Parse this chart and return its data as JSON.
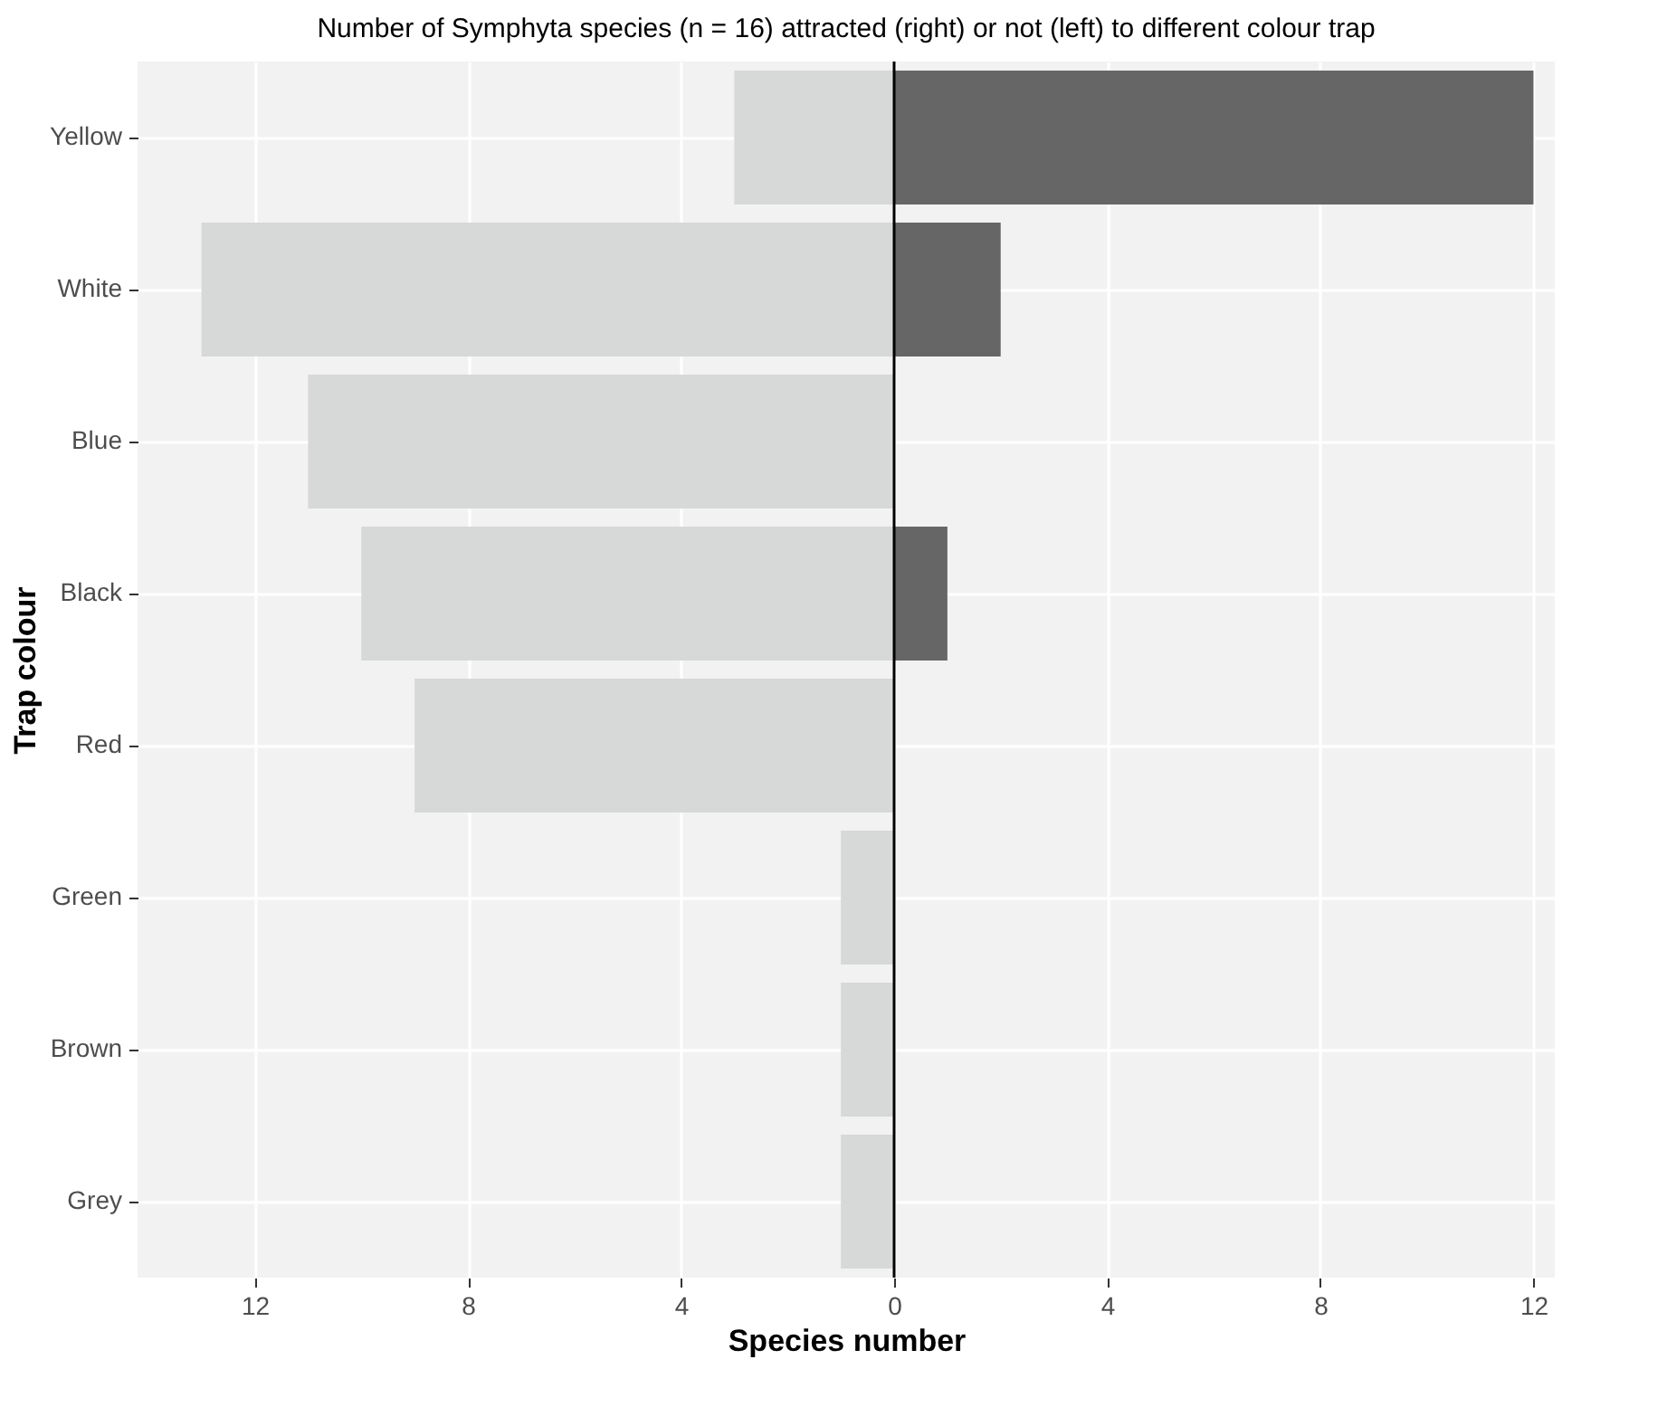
{
  "chart_data": {
    "type": "bar",
    "orientation": "horizontal",
    "title": "Number of Symphyta species (n = 16) attracted (right) or not (left) to different colour trap",
    "xlabel": "Species number",
    "ylabel": "Trap colour",
    "categories": [
      "Yellow",
      "White",
      "Blue",
      "Black",
      "Red",
      "Green",
      "Brown",
      "Grey"
    ],
    "series": [
      {
        "color": "#d7d8d8",
        "values": [
          -3,
          -13,
          -11,
          -10,
          -9,
          -1,
          -1,
          -1
        ]
      },
      {
        "color": "#666666",
        "values": [
          12,
          2,
          0,
          1,
          0,
          0,
          0,
          0
        ]
      }
    ],
    "xlim": [
      -14.2,
      12.4
    ],
    "xticks": [
      {
        "value": -12,
        "label": "12"
      },
      {
        "value": -8,
        "label": "8"
      },
      {
        "value": -4,
        "label": "4"
      },
      0,
      4,
      8,
      12
    ],
    "grid": true,
    "ref_lines": [
      {
        "axis": "x",
        "value": 0,
        "color": "#000000"
      }
    ]
  }
}
